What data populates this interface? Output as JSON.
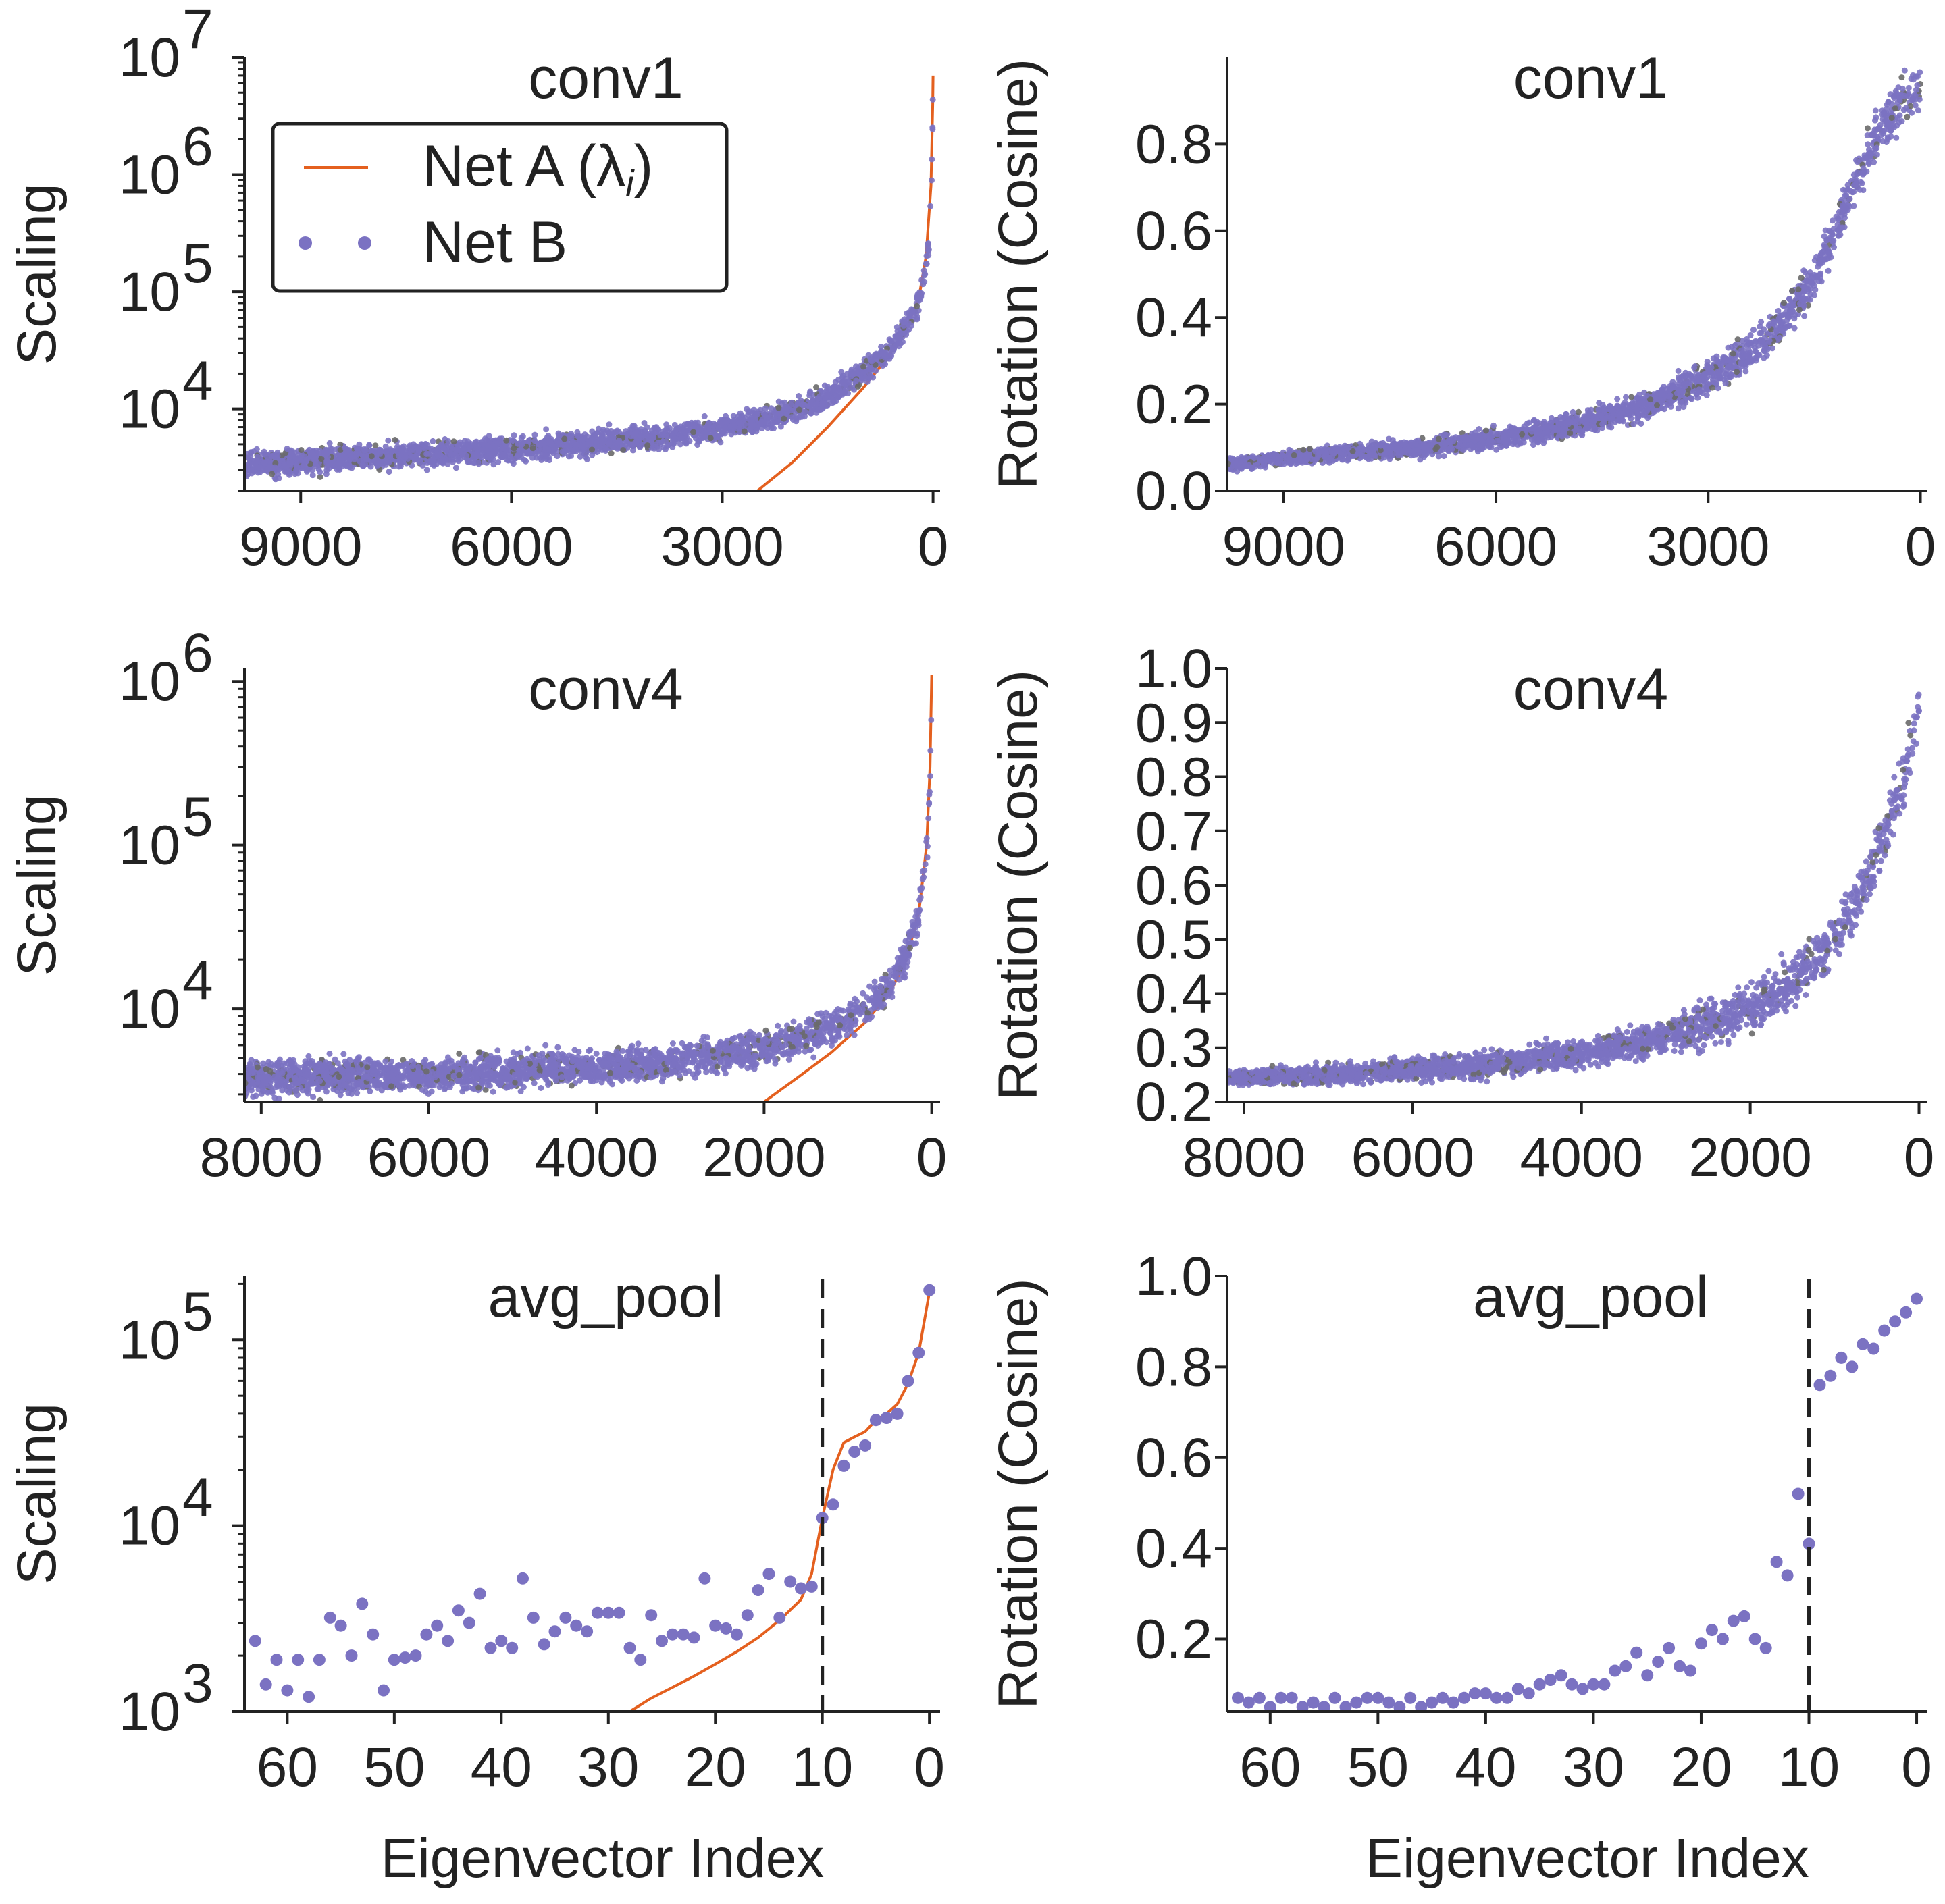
{
  "colors": {
    "net_a": "#e4601f",
    "net_b": "#7b72c2",
    "net_b_dark": "#6a6a6a",
    "axis": "#222222",
    "dashed": "#222222"
  },
  "legend": {
    "net_a_label": "Net A (λ",
    "net_a_sub": "i",
    "net_a_close": ")",
    "net_b_label": "Net B"
  },
  "chart_data": [
    {
      "id": "conv1-scaling",
      "type": "scatter",
      "title": "conv1",
      "xlabel": "",
      "ylabel": "Scaling",
      "xlim": [
        9800,
        -100
      ],
      "ylim": [
        2000,
        10000000
      ],
      "yscale": "log",
      "xticks": [
        "9000",
        "6000",
        "3000",
        "0"
      ],
      "xtick_values": [
        9000,
        6000,
        3000,
        0
      ],
      "yticks": [
        "10",
        "10",
        "10",
        "10"
      ],
      "ytick_exponents": [
        "7",
        "6",
        "5",
        "4"
      ],
      "ytick_values": [
        10000000,
        1000000,
        100000,
        10000
      ],
      "legend": "top-left",
      "series": [
        {
          "name": "Net A (λi)",
          "kind": "line",
          "x": [
            2500,
            2000,
            1500,
            1000,
            700,
            400,
            200,
            100,
            30,
            5,
            0
          ],
          "y": [
            2000,
            3500,
            7000,
            15000,
            25000,
            45000,
            90000,
            200000,
            800000,
            4000000,
            7000000
          ]
        },
        {
          "name": "Net B",
          "kind": "scatter-band",
          "x": [
            9800,
            9000,
            8000,
            7000,
            6000,
            5000,
            4000,
            3000,
            2000,
            1500,
            1000,
            600,
            300,
            150,
            50,
            10,
            0
          ],
          "y": [
            3300,
            3600,
            3900,
            4200,
            4600,
            5000,
            5700,
            6800,
            9500,
            13000,
            20000,
            33000,
            60000,
            110000,
            280000,
            1500000,
            7000000
          ]
        }
      ]
    },
    {
      "id": "conv1-rotation",
      "type": "scatter",
      "title": "conv1",
      "xlabel": "",
      "ylabel": "Rotation (Cosine)",
      "xlim": [
        9800,
        -100
      ],
      "ylim": [
        0.0,
        1.0
      ],
      "xticks": [
        "9000",
        "6000",
        "3000",
        "0"
      ],
      "xtick_values": [
        9000,
        6000,
        3000,
        0
      ],
      "yticks": [
        "0.0",
        "0.2",
        "0.4",
        "0.6",
        "0.8"
      ],
      "ytick_values": [
        0.0,
        0.2,
        0.4,
        0.6,
        0.8
      ],
      "series": [
        {
          "name": "Net B",
          "kind": "scatter-band",
          "x": [
            9800,
            9000,
            8000,
            7000,
            6000,
            5000,
            4000,
            3000,
            2500,
            2000,
            1500,
            1200,
            900,
            600,
            300,
            100,
            0
          ],
          "y": [
            0.06,
            0.075,
            0.09,
            0.1,
            0.12,
            0.15,
            0.19,
            0.26,
            0.31,
            0.38,
            0.49,
            0.6,
            0.72,
            0.82,
            0.89,
            0.92,
            0.93
          ]
        }
      ]
    },
    {
      "id": "conv4-scaling",
      "type": "scatter",
      "title": "conv4",
      "xlabel": "",
      "ylabel": "Scaling",
      "xlim": [
        8200,
        -100
      ],
      "ylim": [
        2700,
        1200000
      ],
      "yscale": "log",
      "xticks": [
        "8000",
        "6000",
        "4000",
        "2000",
        "0"
      ],
      "xtick_values": [
        8000,
        6000,
        4000,
        2000,
        0
      ],
      "yticks": [
        "10",
        "10",
        "10"
      ],
      "ytick_exponents": [
        "6",
        "5",
        "4"
      ],
      "ytick_values": [
        1000000,
        100000,
        10000
      ],
      "series": [
        {
          "name": "Net A (λi)",
          "kind": "line",
          "x": [
            2000,
            1600,
            1200,
            800,
            500,
            300,
            150,
            60,
            20,
            0
          ],
          "y": [
            2700,
            3800,
            5400,
            8200,
            12500,
            20000,
            40000,
            100000,
            300000,
            1100000
          ]
        },
        {
          "name": "Net B",
          "kind": "scatter-band",
          "x": [
            8200,
            7000,
            6000,
            5000,
            4000,
            3000,
            2000,
            1500,
            1000,
            600,
            300,
            150,
            50,
            10,
            0
          ],
          "y": [
            3800,
            3900,
            4000,
            4200,
            4400,
            4800,
            5800,
            6700,
            8500,
            12500,
            21000,
            40000,
            110000,
            350000,
            1100000
          ]
        }
      ]
    },
    {
      "id": "conv4-rotation",
      "type": "scatter",
      "title": "conv4",
      "xlabel": "",
      "ylabel": "Rotation (Cosine)",
      "xlim": [
        8200,
        -100
      ],
      "ylim": [
        0.2,
        1.0
      ],
      "xticks": [
        "8000",
        "6000",
        "4000",
        "2000",
        "0"
      ],
      "xtick_values": [
        8000,
        6000,
        4000,
        2000,
        0
      ],
      "yticks": [
        "0.2",
        "0.3",
        "0.4",
        "0.5",
        "0.6",
        "0.7",
        "0.8",
        "0.9",
        "1.0"
      ],
      "ytick_values": [
        0.2,
        0.3,
        0.4,
        0.5,
        0.6,
        0.7,
        0.8,
        0.9,
        1.0
      ],
      "series": [
        {
          "name": "Net B",
          "kind": "scatter-band",
          "x": [
            8200,
            7000,
            6000,
            5000,
            4000,
            3000,
            2000,
            1500,
            1000,
            700,
            400,
            200,
            50,
            0
          ],
          "y": [
            0.245,
            0.25,
            0.26,
            0.27,
            0.29,
            0.32,
            0.37,
            0.42,
            0.5,
            0.58,
            0.69,
            0.79,
            0.9,
            0.94
          ]
        }
      ]
    },
    {
      "id": "avgpool-scaling",
      "type": "scatter",
      "title": "avg_pool",
      "xlabel": "Eigenvector Index",
      "ylabel": "Scaling",
      "xlim": [
        64,
        -1
      ],
      "ylim": [
        1000,
        220000
      ],
      "yscale": "log",
      "xticks": [
        "60",
        "50",
        "40",
        "30",
        "20",
        "10",
        "0"
      ],
      "xtick_values": [
        60,
        50,
        40,
        30,
        20,
        10,
        0
      ],
      "yticks": [
        "10",
        "10",
        "10"
      ],
      "ytick_exponents": [
        "5",
        "4",
        "3"
      ],
      "ytick_values": [
        100000,
        10000,
        1000
      ],
      "vline_x": 10,
      "series": [
        {
          "name": "Net A (λi)",
          "kind": "line",
          "x": [
            28,
            26,
            24,
            22,
            20,
            18,
            16,
            14,
            12,
            11,
            10,
            9,
            8,
            7,
            6,
            5,
            4,
            3,
            2,
            1,
            0
          ],
          "y": [
            1000,
            1180,
            1350,
            1550,
            1800,
            2100,
            2500,
            3100,
            4000,
            5500,
            11000,
            20000,
            28000,
            30000,
            32000,
            37000,
            40000,
            45000,
            58000,
            85000,
            180000
          ]
        },
        {
          "name": "Net B",
          "kind": "scatter",
          "x": [
            63,
            62,
            61,
            60,
            59,
            58,
            57,
            56,
            55,
            54,
            53,
            52,
            51,
            50,
            49,
            48,
            47,
            46,
            45,
            44,
            43,
            42,
            41,
            40,
            39,
            38,
            37,
            36,
            35,
            34,
            33,
            32,
            31,
            30,
            29,
            28,
            27,
            26,
            25,
            24,
            23,
            22,
            21,
            20,
            19,
            18,
            17,
            16,
            15,
            14,
            13,
            12,
            11,
            10,
            9,
            8,
            7,
            6,
            5,
            4,
            3,
            2,
            1,
            0
          ],
          "y": [
            2400,
            1400,
            1900,
            1300,
            1900,
            1200,
            1900,
            3200,
            2900,
            2000,
            3800,
            2600,
            1300,
            1900,
            1950,
            2000,
            2600,
            2900,
            2400,
            3500,
            3000,
            4300,
            2200,
            2400,
            2200,
            5200,
            3200,
            2300,
            2700,
            3200,
            2900,
            2700,
            3400,
            3400,
            3400,
            2200,
            1900,
            3300,
            2400,
            2600,
            2600,
            2500,
            5200,
            2900,
            2800,
            2600,
            3300,
            4500,
            5500,
            3200,
            5000,
            4600,
            4700,
            11000,
            13000,
            21000,
            25000,
            27000,
            37000,
            38000,
            40000,
            60000,
            85000,
            185000
          ]
        }
      ]
    },
    {
      "id": "avgpool-rotation",
      "type": "scatter",
      "title": "avg_pool",
      "xlabel": "Eigenvector Index",
      "ylabel": "Rotation (Cosine)",
      "xlim": [
        64,
        -1
      ],
      "ylim": [
        0.04,
        1.0
      ],
      "xticks": [
        "60",
        "50",
        "40",
        "30",
        "20",
        "10",
        "0"
      ],
      "xtick_values": [
        60,
        50,
        40,
        30,
        20,
        10,
        0
      ],
      "yticks": [
        "0.2",
        "0.4",
        "0.6",
        "0.8",
        "1.0"
      ],
      "ytick_values": [
        0.2,
        0.4,
        0.6,
        0.8,
        1.0
      ],
      "vline_x": 10,
      "series": [
        {
          "name": "Net B",
          "kind": "scatter",
          "x": [
            63,
            62,
            61,
            60,
            59,
            58,
            57,
            56,
            55,
            54,
            53,
            52,
            51,
            50,
            49,
            48,
            47,
            46,
            45,
            44,
            43,
            42,
            41,
            40,
            39,
            38,
            37,
            36,
            35,
            34,
            33,
            32,
            31,
            30,
            29,
            28,
            27,
            26,
            25,
            24,
            23,
            22,
            21,
            20,
            19,
            18,
            17,
            16,
            15,
            14,
            13,
            12,
            11,
            10,
            9,
            8,
            7,
            6,
            5,
            4,
            3,
            2,
            1,
            0
          ],
          "y": [
            0.07,
            0.06,
            0.07,
            0.05,
            0.07,
            0.07,
            0.05,
            0.06,
            0.05,
            0.07,
            0.05,
            0.06,
            0.07,
            0.07,
            0.06,
            0.05,
            0.07,
            0.05,
            0.06,
            0.07,
            0.06,
            0.07,
            0.08,
            0.08,
            0.07,
            0.07,
            0.09,
            0.08,
            0.1,
            0.11,
            0.12,
            0.1,
            0.09,
            0.1,
            0.1,
            0.13,
            0.14,
            0.17,
            0.12,
            0.15,
            0.18,
            0.14,
            0.13,
            0.19,
            0.22,
            0.2,
            0.24,
            0.25,
            0.2,
            0.18,
            0.37,
            0.34,
            0.52,
            0.41,
            0.76,
            0.78,
            0.82,
            0.8,
            0.85,
            0.84,
            0.88,
            0.9,
            0.92,
            0.95
          ]
        }
      ]
    }
  ]
}
